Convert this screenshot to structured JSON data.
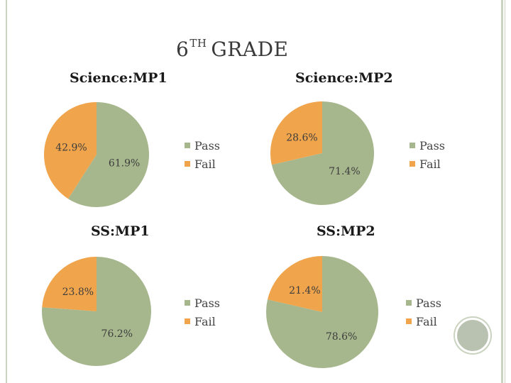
{
  "slide": {
    "title_main": "6",
    "title_sup": "TH",
    "title_rest": "GRADE"
  },
  "colors": {
    "pass": "#a7b78d",
    "fail": "#f0a44b"
  },
  "legend_labels": {
    "pass": "Pass",
    "fail": "Fail"
  },
  "chart_data": [
    {
      "type": "pie",
      "title": "Science:MP1",
      "categories": [
        "Pass",
        "Fail"
      ],
      "values": [
        61.9,
        42.9
      ],
      "labels": [
        "61.9%",
        "42.9%"
      ],
      "legend": "right"
    },
    {
      "type": "pie",
      "title": "Science:MP2",
      "categories": [
        "Pass",
        "Fail"
      ],
      "values": [
        71.4,
        28.6
      ],
      "labels": [
        "71.4%",
        "28.6%"
      ],
      "legend": "right"
    },
    {
      "type": "pie",
      "title": "SS:MP1",
      "categories": [
        "Pass",
        "Fail"
      ],
      "values": [
        76.2,
        23.8
      ],
      "labels": [
        "76.2%",
        "23.8%"
      ],
      "legend": "right"
    },
    {
      "type": "pie",
      "title": "SS:MP2",
      "categories": [
        "Pass",
        "Fail"
      ],
      "values": [
        78.6,
        21.4
      ],
      "labels": [
        "78.6%",
        "21.4%"
      ],
      "legend": "right"
    }
  ]
}
